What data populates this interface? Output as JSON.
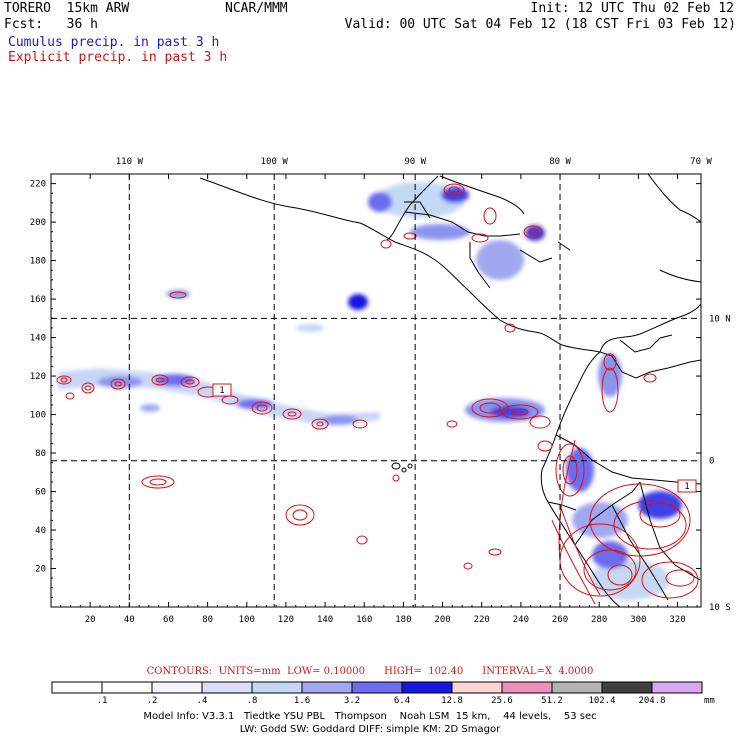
{
  "header": {
    "model": "TORERO  15km ARW",
    "org": "NCAR/MMM",
    "init": "Init: 12 UTC Thu 02 Feb 12",
    "fcst": "Fcst:   36 h",
    "valid": "Valid: 00 UTC Sat 04 Feb 12 (18 CST Fri 03 Feb 12)",
    "cumulus": "Cumulus precip. in past 3 h",
    "explicit": "Explicit precip. in past 3 h"
  },
  "colors": {
    "cumulus_text": "#1a1acc",
    "explicit_text": "#d21414",
    "contour": "#e01010",
    "coast": "#000000",
    "grid": "#000000"
  },
  "chart_data": {
    "type": "heatmap",
    "x_range": [
      0,
      332
    ],
    "y_range": [
      0,
      225
    ],
    "x_ticks": [
      "20",
      "40",
      "60",
      "80",
      "100",
      "120",
      "140",
      "160",
      "180",
      "200",
      "220",
      "240",
      "260",
      "280",
      "300",
      "320"
    ],
    "x_tick_values": [
      20,
      40,
      60,
      80,
      100,
      120,
      140,
      160,
      180,
      200,
      220,
      240,
      260,
      280,
      300,
      320
    ],
    "y_ticks": [
      "20",
      "40",
      "60",
      "80",
      "100",
      "120",
      "140",
      "160",
      "180",
      "200",
      "220"
    ],
    "y_tick_values": [
      20,
      40,
      60,
      80,
      100,
      120,
      140,
      160,
      180,
      200,
      220
    ],
    "lon_labels": [
      "110 W",
      "100 W",
      "90 W",
      "80 W",
      "70 W"
    ],
    "lon_values": [
      40,
      114,
      186,
      260,
      332
    ],
    "lat_labels": [
      "10 N",
      "0",
      "10 S"
    ],
    "lat_values": [
      150,
      76,
      0
    ],
    "contours_info": {
      "label": "CONTOURS:",
      "units": "UNITS=mm",
      "low": "LOW= 0.10000",
      "high": "HIGH=  102.40",
      "interval": "INTERVAL=X  4.0000"
    },
    "colorbar": {
      "labels": [
        ".1",
        ".2",
        ".4",
        ".8",
        "1.6",
        "3.2",
        "6.4",
        "12.8",
        "25.6",
        "51.2",
        "102.4",
        "204.8"
      ],
      "colors": [
        "#ffffff",
        "#ffffff",
        "#f4f4ff",
        "#dcdcfc",
        "#c4d8f4",
        "#a0a8f0",
        "#6c6cf0",
        "#1818e0",
        "#fcd4d4",
        "#f090b8",
        "#b4b4b4",
        "#404040",
        "#d8a8f4"
      ],
      "unit": "mm"
    }
  },
  "footer": {
    "line1": "Model Info: V3.3.1   Tiedtke YSU PBL   Thompson    Noah LSM  15 km,    44 levels,    53 sec",
    "line2": "LW: Godd SW: Goddard DIFF: simple KM: 2D Smagor"
  }
}
